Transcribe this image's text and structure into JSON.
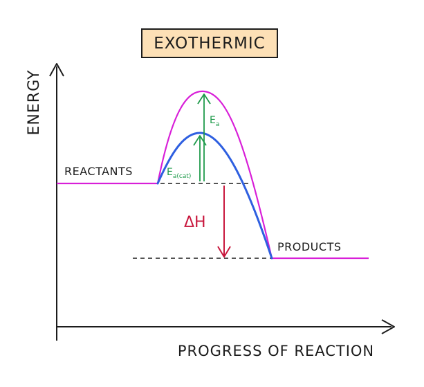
{
  "title": "EXOTHERMIC",
  "axes": {
    "y_label": "ENERGY",
    "x_label": "PROGRESS OF REACTION"
  },
  "labels": {
    "reactants": "REACTANTS",
    "products": "PRODUCTS",
    "delta_h": "ΔH",
    "ea_main": "E",
    "ea_sub": "a",
    "ea_cat_main": "E",
    "ea_cat_sub": "a(cat)"
  },
  "colors": {
    "uncatalysed_curve": "#d81fd8",
    "catalysed_curve": "#2e5fe0",
    "activation_arrows": "#1e9a4a",
    "delta_h_arrow": "#c8163c",
    "title_fill": "#fde0b6",
    "ink": "#1c1c1c"
  }
}
